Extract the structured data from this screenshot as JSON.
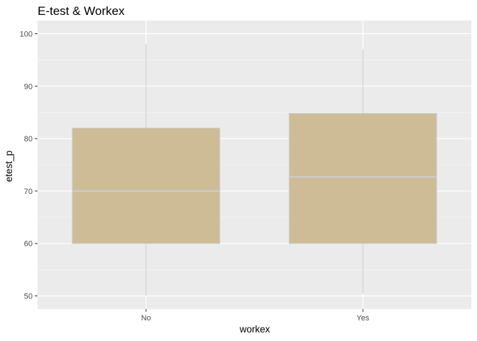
{
  "chart_data": {
    "type": "box",
    "title": "E-test & Workex",
    "xlabel": "workex",
    "ylabel": "etest_p",
    "categories": [
      "No",
      "Yes"
    ],
    "boxes": [
      {
        "category": "No",
        "min": 50,
        "q1": 60,
        "median": 70,
        "q3": 82,
        "max": 98
      },
      {
        "category": "Yes",
        "min": 50.5,
        "q1": 60,
        "median": 72.7,
        "q3": 84.8,
        "max": 97
      }
    ],
    "ylim": [
      47.5,
      102.5
    ],
    "yticks": [
      50,
      60,
      70,
      80,
      90,
      100
    ],
    "grid": true,
    "legend": "none",
    "colors": {
      "panel": "#ebebeb",
      "grid_major": "#ffffff",
      "grid_minor": "#f4f4f4",
      "box_fill": "#cebc97",
      "box_line": "#cccccc"
    }
  }
}
